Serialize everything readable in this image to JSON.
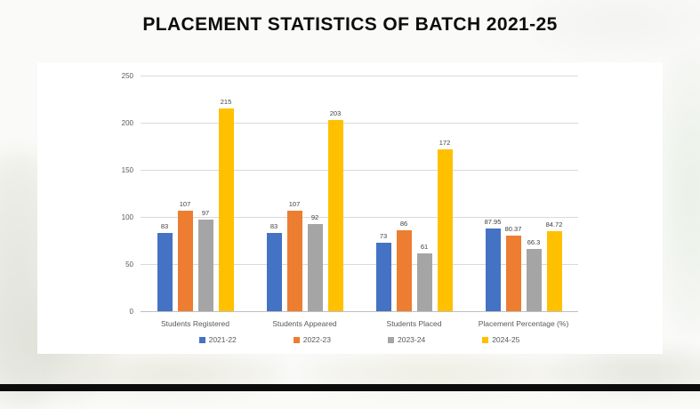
{
  "page": {
    "title": "PLACEMENT STATISTICS OF BATCH 2021-25"
  },
  "colors": {
    "page_background": "#fafaf9",
    "card_background": "#ffffff",
    "title_text": "#0d0d0d",
    "axis_text": "#595959",
    "value_label_text": "#404040",
    "gridline": "#d9d9d9",
    "bottom_bar": "#0c0c0c"
  },
  "chart_data": {
    "type": "bar",
    "title": "PLACEMENT STATISTICS OF BATCH 2021-25",
    "categories": [
      "Students Registered",
      "Students Appeared",
      "Students Placed",
      "Placement Percentage (%)"
    ],
    "series": [
      {
        "name": "2021-22",
        "color": "#4472C4",
        "values": [
          83,
          83,
          73,
          87.95
        ]
      },
      {
        "name": "2022-23",
        "color": "#ED7D31",
        "values": [
          107,
          107,
          86,
          80.37
        ]
      },
      {
        "name": "2023-24",
        "color": "#A5A5A5",
        "values": [
          97,
          92,
          61,
          66.3
        ]
      },
      {
        "name": "2024-25",
        "color": "#FFC000",
        "values": [
          215,
          203,
          172,
          84.72
        ]
      }
    ],
    "y_ticks": [
      0,
      50,
      100,
      150,
      200,
      250
    ],
    "ylim": [
      0,
      250
    ],
    "xlabel": "",
    "ylabel": "",
    "grid": true,
    "value_labels": true,
    "legend_position": "bottom"
  }
}
